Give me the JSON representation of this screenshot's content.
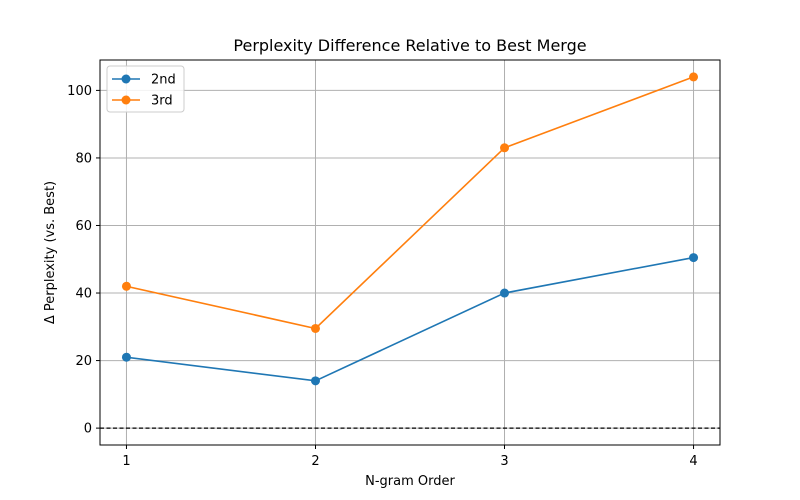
{
  "chart_data": {
    "type": "line",
    "title": "Perplexity Difference Relative to Best Merge",
    "xlabel": "N-gram Order",
    "ylabel": "Δ Perplexity (vs. Best)",
    "x": [
      1,
      2,
      3,
      4
    ],
    "x_tick_labels": [
      "1",
      "2",
      "3",
      "4"
    ],
    "y_ticks": [
      0,
      20,
      40,
      60,
      80,
      100
    ],
    "y_tick_labels": [
      "0",
      "20",
      "40",
      "60",
      "80",
      "100"
    ],
    "xlim": [
      0.86,
      4.14
    ],
    "ylim": [
      -5,
      109
    ],
    "grid": true,
    "legend_position": "top-left",
    "reference_line": {
      "y": 0,
      "style": "dashed",
      "color": "#000000"
    },
    "series": [
      {
        "name": "2nd",
        "color": "#1f77b4",
        "marker": "circle",
        "values": [
          21,
          14,
          40,
          50.5
        ]
      },
      {
        "name": "3rd",
        "color": "#ff7f0e",
        "marker": "circle",
        "values": [
          42,
          29.5,
          83,
          104
        ]
      }
    ]
  }
}
